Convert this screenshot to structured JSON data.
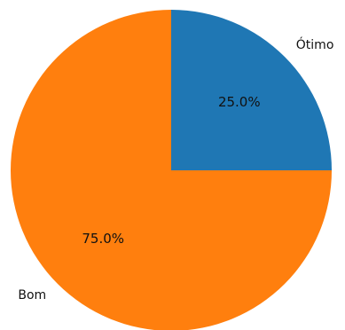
{
  "chart_data": {
    "type": "pie",
    "title": "",
    "slices": [
      {
        "label": "Ótimo",
        "value": 25.0,
        "pct_label": "25.0%",
        "color": "#1f77b4"
      },
      {
        "label": "Bom",
        "value": 75.0,
        "pct_label": "75.0%",
        "color": "#ff7f0e"
      }
    ],
    "start_angle_deg": 90,
    "direction": "clockwise",
    "legend": "none"
  }
}
